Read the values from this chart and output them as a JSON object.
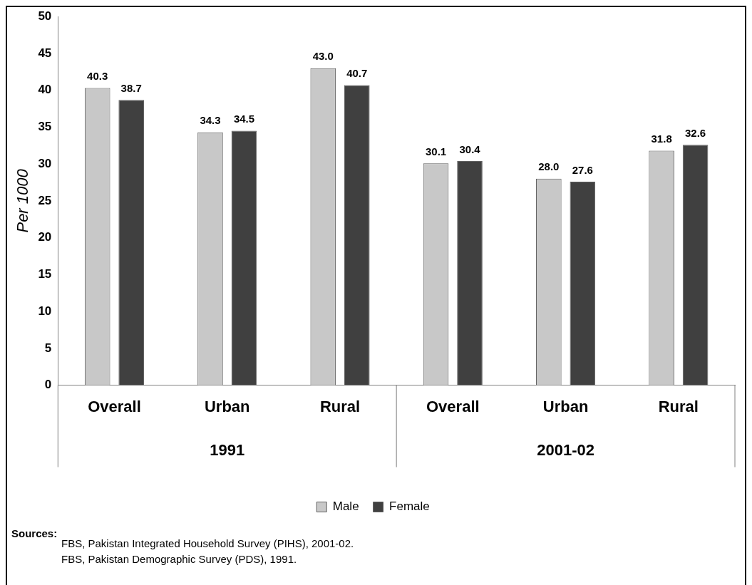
{
  "chart_data": {
    "type": "bar",
    "ylabel": "Per 1000",
    "categories": [
      "Overall",
      "Urban",
      "Rural",
      "Overall",
      "Urban",
      "Rural"
    ],
    "series": [
      {
        "name": "Male",
        "color": "#c8c8c8",
        "values": [
          40.3,
          34.3,
          43.0,
          30.1,
          28.0,
          31.8
        ],
        "value_labels": [
          "40.3",
          "34.3",
          "43.0",
          "30.1",
          "28.0",
          "31.8"
        ]
      },
      {
        "name": "Female",
        "color": "#404040",
        "values": [
          38.7,
          34.5,
          40.7,
          30.4,
          27.6,
          32.6
        ],
        "value_labels": [
          "38.7",
          "34.5",
          "40.7",
          "30.4",
          "27.6",
          "32.6"
        ]
      }
    ],
    "ylim": [
      0,
      50
    ],
    "yticks": [
      0,
      5,
      10,
      15,
      20,
      25,
      30,
      35,
      40,
      45,
      50
    ],
    "grid": false,
    "legend": "bottom",
    "annotations": [
      "1991",
      "2001-02",
      "Sources:",
      "FBS, Pakistan Integrated Household Survey (PIHS), 2001-02.",
      "FBS, Pakistan Demographic Survey (PDS), 1991."
    ]
  }
}
